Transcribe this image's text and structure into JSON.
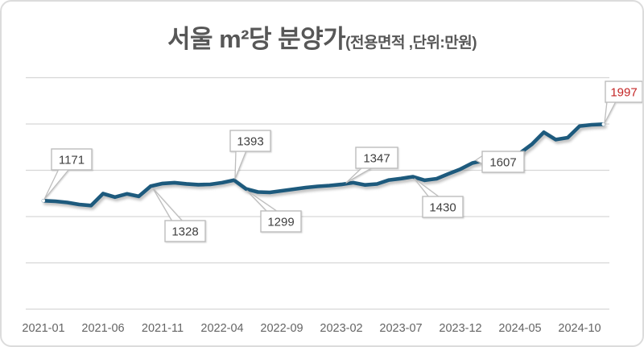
{
  "title": {
    "main": "서울 m²당 분양가",
    "sub": "(전용면적 ,단위:만원)"
  },
  "colors": {
    "background": "#ffffff",
    "card_border": "#dcdcdc",
    "line": "#1d5a7d",
    "grid": "#d6d6d6",
    "axis_text": "#646464",
    "title_text": "#575757",
    "callout_border": "#bdbdbd",
    "callout_fill": "#ffffff",
    "callout_text": "#3f3f3f",
    "highlight_text": "#c42525"
  },
  "chart_data": {
    "type": "line",
    "title": "서울 m²당 분양가(전용면적 ,단위:만원)",
    "xlabel": "",
    "ylabel": "",
    "ylim": [
      0,
      2500
    ],
    "y_grid_step": 500,
    "grid": "horizontal-only",
    "legend": "none",
    "y_axis_labels_visible": false,
    "x": [
      "2021-01",
      "2021-02",
      "2021-03",
      "2021-04",
      "2021-05",
      "2021-06",
      "2021-07",
      "2021-08",
      "2021-09",
      "2021-10",
      "2021-11",
      "2021-12",
      "2022-01",
      "2022-02",
      "2022-03",
      "2022-04",
      "2022-05",
      "2022-06",
      "2022-07",
      "2022-08",
      "2022-09",
      "2022-10",
      "2022-11",
      "2022-12",
      "2023-01",
      "2023-02",
      "2023-03",
      "2023-04",
      "2023-05",
      "2023-06",
      "2023-07",
      "2023-08",
      "2023-09",
      "2023-10",
      "2023-11",
      "2023-12",
      "2024-01",
      "2024-02",
      "2024-03",
      "2024-04",
      "2024-05",
      "2024-06",
      "2024-07",
      "2024-08",
      "2024-09",
      "2024-10",
      "2024-11",
      "2024-12"
    ],
    "values": [
      1171,
      1165,
      1152,
      1130,
      1119,
      1248,
      1210,
      1245,
      1218,
      1328,
      1357,
      1366,
      1353,
      1344,
      1348,
      1366,
      1393,
      1299,
      1265,
      1261,
      1278,
      1296,
      1313,
      1326,
      1335,
      1347,
      1366,
      1342,
      1352,
      1395,
      1410,
      1430,
      1392,
      1409,
      1462,
      1512,
      1578,
      1607,
      1632,
      1658,
      1686,
      1782,
      1910,
      1831,
      1852,
      1977,
      1991,
      1997
    ],
    "x_tick_labels": [
      "2021-01",
      "2021-06",
      "2021-11",
      "2022-04",
      "2022-09",
      "2023-02",
      "2023-07",
      "2023-12",
      "2024-05",
      "2024-10"
    ],
    "annotations": [
      {
        "x": "2021-01",
        "value": 1171,
        "highlight": false
      },
      {
        "x": "2021-10",
        "value": 1328,
        "highlight": false
      },
      {
        "x": "2022-05",
        "value": 1393,
        "highlight": false
      },
      {
        "x": "2022-06",
        "value": 1299,
        "highlight": false
      },
      {
        "x": "2023-02",
        "value": 1347,
        "highlight": false
      },
      {
        "x": "2023-08",
        "value": 1430,
        "highlight": false
      },
      {
        "x": "2024-02",
        "value": 1607,
        "highlight": false
      },
      {
        "x": "2024-12",
        "value": 1997,
        "highlight": true
      }
    ]
  }
}
